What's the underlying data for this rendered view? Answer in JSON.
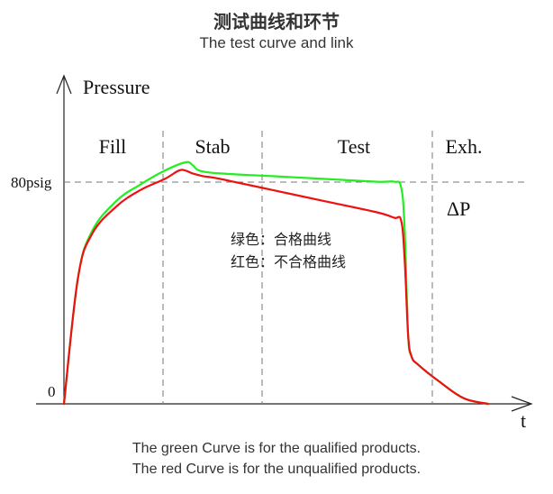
{
  "header": {
    "title_cn": "测试曲线和环节",
    "title_en": "The test curve and link"
  },
  "footer": {
    "line1": "The green Curve is for the qualified products.",
    "line2": "The red Curve is for the unqualified products."
  },
  "chart_data": {
    "type": "line",
    "ylabel": "Pressure",
    "xlabel": "t",
    "y_ticks": [
      {
        "label": "0",
        "value": 0
      },
      {
        "label": "80psig",
        "value": 80
      }
    ],
    "phases": [
      "Fill",
      "Stab",
      "Test",
      "Exh."
    ],
    "delta_label": "ΔP",
    "legend": {
      "green": "绿色：合格曲线",
      "red": "红色：不合格曲线"
    },
    "colors": {
      "qualified": "#22ee22",
      "unqualified": "#ee1111"
    },
    "series": [
      {
        "name": "绿色：合格曲线",
        "x": [
          0,
          4,
          8,
          15,
          22,
          29,
          35,
          37,
          39,
          45,
          60,
          75,
          90,
          95,
          97,
          98,
          99,
          100,
          102,
          108,
          115,
          122
        ],
        "y": [
          0,
          45,
          62,
          73,
          79,
          84,
          87,
          86,
          84,
          83,
          82,
          81,
          80,
          80,
          78,
          63,
          25,
          17,
          14,
          8,
          2,
          0
        ]
      },
      {
        "name": "红色：不合格曲线",
        "x": [
          0,
          4,
          8,
          15,
          22,
          29,
          33,
          35,
          37,
          40,
          45,
          60,
          75,
          90,
          95,
          97,
          98,
          99,
          100,
          102,
          108,
          115,
          122
        ],
        "y": [
          0,
          45,
          61,
          71,
          77,
          81,
          84,
          84,
          83,
          82,
          81,
          77,
          73,
          69,
          67,
          66,
          52,
          25,
          17,
          14,
          8,
          2,
          0
        ]
      }
    ]
  }
}
